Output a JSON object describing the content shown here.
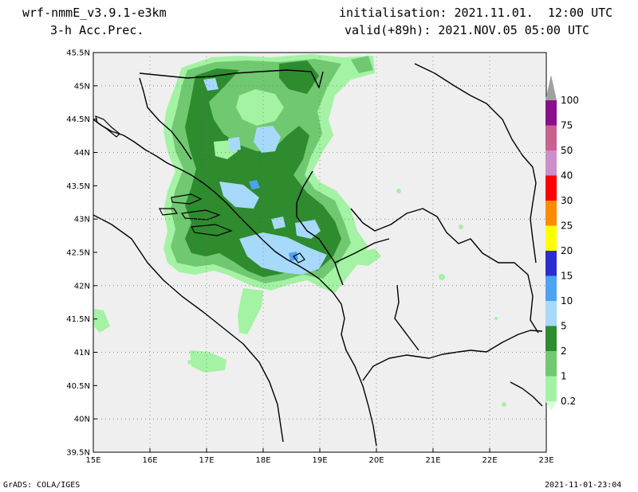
{
  "header": {
    "model": "wrf-nmmE_v3.9.1-e3km",
    "field": "3-h Acc.Prec.",
    "init": "initialisation: 2021.11.01.  12:00 UTC",
    "valid": "valid(+89h): 2021.NOV.05 05:00 UTC"
  },
  "footer": {
    "left": "GrADS: COLA/IGES",
    "right": "2021-11-01-23:04"
  },
  "map": {
    "lat_labels": [
      "45.5N",
      "45N",
      "44.5N",
      "44N",
      "43.5N",
      "43N",
      "42.5N",
      "42N",
      "41.5N",
      "41N",
      "40.5N",
      "40N",
      "39.5N"
    ],
    "lon_labels": [
      "15E",
      "16E",
      "17E",
      "18E",
      "19E",
      "20E",
      "21E",
      "22E",
      "23E"
    ],
    "lat_range": [
      39.5,
      45.5
    ],
    "lon_range": [
      15,
      23
    ],
    "grid": true,
    "background": "#efefef"
  },
  "legend": {
    "levels": [
      "100",
      "75",
      "50",
      "40",
      "30",
      "25",
      "20",
      "15",
      "10",
      "5",
      "2",
      "1",
      "0.2"
    ],
    "colors": [
      "#8b0f8b",
      "#c8628e",
      "#cc8fcc",
      "#ff0000",
      "#ff8c00",
      "#ffff00",
      "#2c2cd2",
      "#4da2f2",
      "#a6d9fa",
      "#2e8b2e",
      "#70c870",
      "#a4f2a4"
    ],
    "arrow_color": "#a0a0a0"
  },
  "colors": {
    "light_green": "#a4f2a4",
    "mid_green": "#70c870",
    "dark_green": "#2e8b2e",
    "light_blue": "#a6d9fa",
    "mid_blue": "#4da2f2"
  }
}
